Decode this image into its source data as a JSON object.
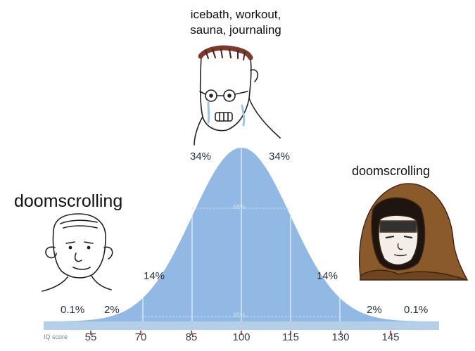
{
  "captions": {
    "top": [
      "icebath, workout,",
      "sauna, journaling"
    ],
    "left": "doomscrolling",
    "right": "doomscrolling"
  },
  "curve": {
    "fill_color": "#92b9e3",
    "divider_color": "#ffffff",
    "percentages": {
      "p1_left": "0.1%",
      "p2_left": "2%",
      "p14_left": "14%",
      "p34_left": "34%",
      "p34_right": "34%",
      "p14_right": "14%",
      "p2_right": "2%",
      "p1_right": "0.1%"
    },
    "band_68": "68%",
    "band_95": "95%"
  },
  "axis": {
    "label": "IQ score",
    "ticks": [
      "55",
      "70",
      "85",
      "100",
      "115",
      "130",
      "145"
    ],
    "bar_color": "#b4cfe8",
    "tick_color": "#c0504d"
  },
  "figures": {
    "left": "bald-wojak",
    "center": "crying-glasses-wojak",
    "right": "hooded-figure"
  }
}
